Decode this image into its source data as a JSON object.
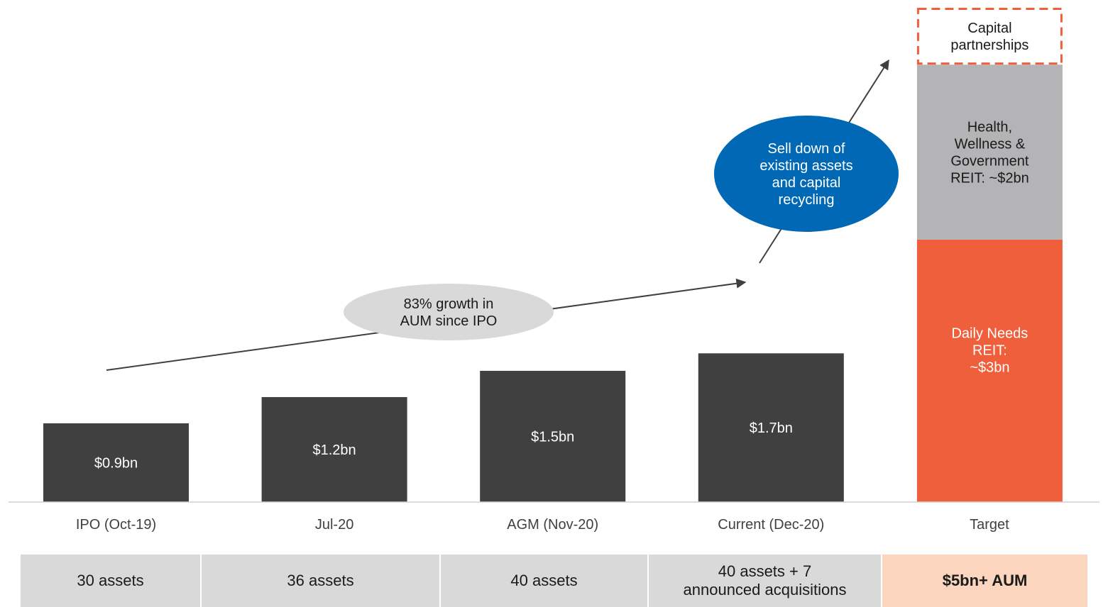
{
  "chart_data": {
    "type": "bar",
    "categories": [
      "IPO (Oct-19)",
      "Jul-20",
      "AGM (Nov-20)",
      "Current (Dec-20)",
      "Target"
    ],
    "series": [
      {
        "values": [
          0.9,
          1.2,
          1.5,
          1.7,
          null
        ],
        "labels": [
          "$0.9bn",
          "$1.2bn",
          "$1.5bn",
          "$1.7bn",
          ""
        ]
      }
    ],
    "target_stack": [
      {
        "label": "Daily Needs\nREIT:\n~$3bn",
        "value": 3,
        "color": "#f05f3c",
        "text_color": "#ffffff"
      },
      {
        "label": "Health,\nWellness &\nGovernment\nREIT: ~$2bn",
        "value": 2,
        "color": "#b4b4b6",
        "text_color": "#1a1a1a"
      },
      {
        "label": "Capital\npartnerships",
        "value": 0.65,
        "color": "#ffffff",
        "border": "#f05f3c",
        "dashed": true,
        "text_color": "#1a1a1a"
      }
    ],
    "annotations": {
      "growth": "83% growth in\nAUM since IPO",
      "selldown": "Sell down of\nexisting assets\nand capital\nrecycling"
    },
    "ylim": [
      0,
      5.65
    ],
    "grid": false,
    "colors": {
      "bar": "#404041",
      "growth_bubble": "#d9d9d9",
      "selldown_bubble": "#0068b5",
      "arrow": "#404041"
    }
  },
  "table": {
    "cells": [
      {
        "text": "30 assets"
      },
      {
        "text": "36 assets"
      },
      {
        "text": "40 assets"
      },
      {
        "text": "40 assets + 7\nannounced acquisitions"
      },
      {
        "text": "$5bn+ AUM"
      }
    ],
    "colors": {
      "normal": "#d9d9d9",
      "highlight": "#fbd5bd"
    }
  }
}
